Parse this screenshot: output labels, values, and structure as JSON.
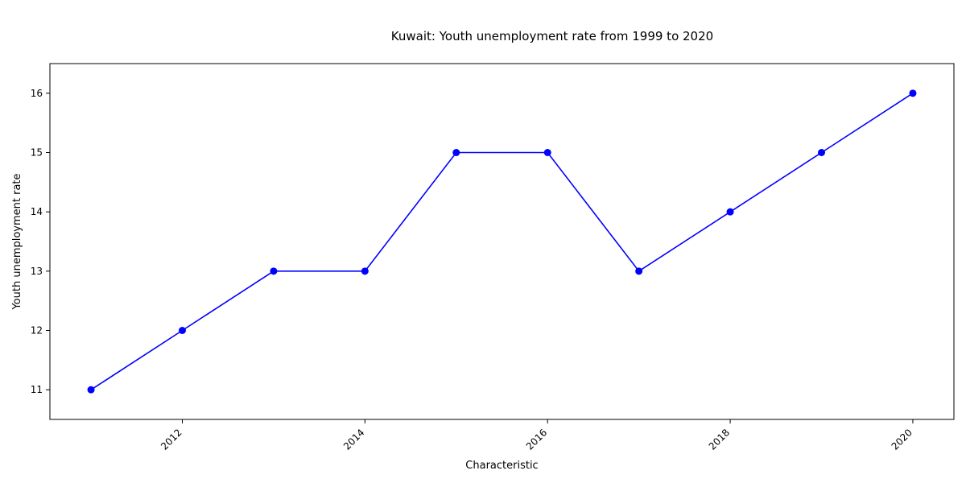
{
  "chart_data": {
    "type": "line",
    "title": "Kuwait: Youth unemployment rate from 1999 to 2020",
    "xlabel": "Characteristic",
    "ylabel": "Youth unemployment rate",
    "x": [
      2011,
      2012,
      2013,
      2014,
      2015,
      2016,
      2017,
      2018,
      2019,
      2020
    ],
    "series": [
      {
        "values": [
          11,
          12,
          13,
          13,
          15,
          15,
          13,
          14,
          15,
          16
        ]
      }
    ],
    "xlim": [
      2010.55,
      2020.45
    ],
    "ylim": [
      10.5,
      16.5
    ],
    "xticks": [
      2012,
      2014,
      2016,
      2018,
      2020
    ],
    "yticks": [
      11,
      12,
      13,
      14,
      15,
      16
    ],
    "xtick_rotation": -45,
    "grid": false,
    "legend": false,
    "line_color": "#0000ff",
    "marker_color": "#0000ff",
    "marker": "circle"
  }
}
